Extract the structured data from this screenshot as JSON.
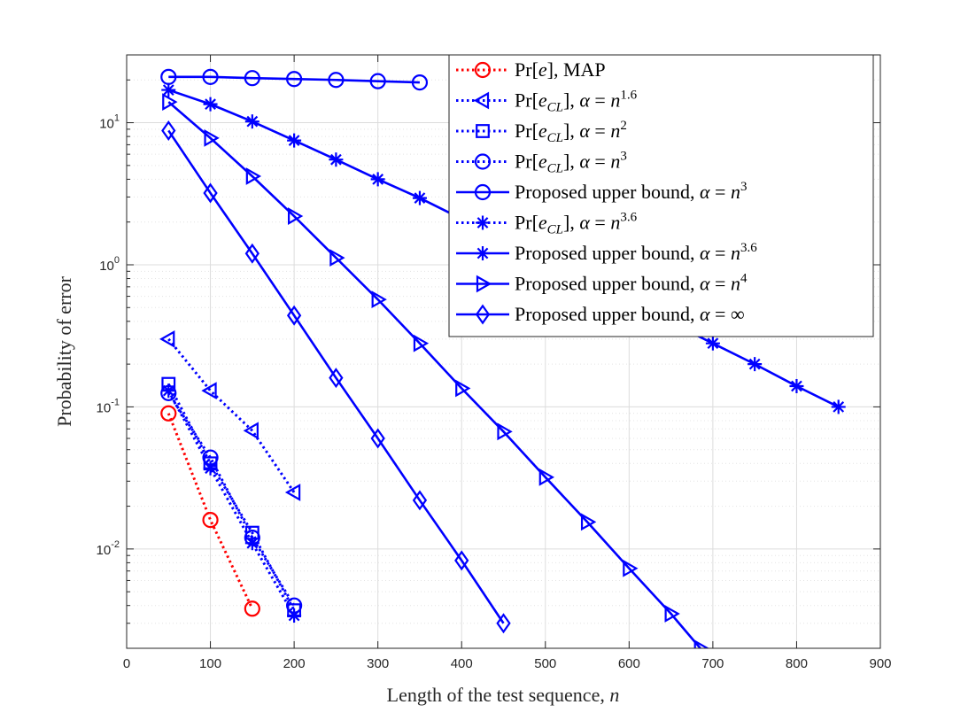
{
  "chart_data": {
    "type": "line",
    "xlabel": "Length of the test sequence, n",
    "ylabel": "Probability of error",
    "xlim": [
      0,
      900
    ],
    "ylim": [
      0.002,
      30
    ],
    "yscale": "log",
    "grid": true,
    "legend_position": "top-right",
    "x_ticks": [
      "0",
      "100",
      "200",
      "300",
      "400",
      "500",
      "600",
      "700",
      "800",
      "900"
    ],
    "y_ticks": [
      {
        "mantissa": "10",
        "exp": "-2"
      },
      {
        "mantissa": "10",
        "exp": "-1"
      },
      {
        "mantissa": "10",
        "exp": "0"
      },
      {
        "mantissa": "10",
        "exp": "1"
      }
    ],
    "series": [
      {
        "name": "Pr[e], MAP",
        "color": "#ff0000",
        "style": "dotted",
        "marker": "circle",
        "x": [
          50,
          100,
          150
        ],
        "y": [
          0.09,
          0.016,
          0.0038
        ]
      },
      {
        "name": "Pr[e_CL], α = n^1.6",
        "color": "#0000ff",
        "style": "dotted",
        "marker": "triangle-left",
        "x": [
          50,
          100,
          150,
          200
        ],
        "y": [
          0.3,
          0.13,
          0.068,
          0.025
        ]
      },
      {
        "name": "Pr[e_CL], α = n^2",
        "color": "#0000ff",
        "style": "dotted",
        "marker": "square",
        "x": [
          50,
          100,
          150,
          200
        ],
        "y": [
          0.145,
          0.04,
          0.013,
          0.0037
        ]
      },
      {
        "name": "Pr[e_CL], α = n^3",
        "color": "#0000ff",
        "style": "dotted",
        "marker": "circle",
        "x": [
          50,
          100,
          150,
          200
        ],
        "y": [
          0.125,
          0.044,
          0.012,
          0.004
        ]
      },
      {
        "name": "Proposed upper bound, α = n^3",
        "color": "#0000ff",
        "style": "solid",
        "marker": "circle",
        "x": [
          50,
          100,
          150,
          200,
          250,
          300,
          350
        ],
        "y": [
          21,
          21,
          20.6,
          20.3,
          20,
          19.6,
          19.2
        ]
      },
      {
        "name": "Pr[e_CL], α = n^3.6",
        "color": "#0000ff",
        "style": "dotted",
        "marker": "star",
        "x": [
          50,
          100,
          150,
          200
        ],
        "y": [
          0.13,
          0.037,
          0.011,
          0.0034
        ]
      },
      {
        "name": "Proposed upper bound, α = n^3.6",
        "color": "#0000ff",
        "style": "solid",
        "marker": "star",
        "x": [
          50,
          100,
          150,
          200,
          250,
          300,
          350,
          700,
          750,
          800,
          850
        ],
        "y": [
          17,
          13.5,
          10.2,
          7.5,
          5.5,
          4.0,
          2.95,
          0.28,
          0.2,
          0.14,
          0.1
        ]
      },
      {
        "name": "Proposed upper bound, α = n^4",
        "color": "#0000ff",
        "style": "solid",
        "marker": "triangle-right",
        "x": [
          50,
          100,
          150,
          200,
          250,
          300,
          350,
          400,
          450,
          500,
          550,
          600,
          650,
          685
        ],
        "y": [
          14,
          7.8,
          4.2,
          2.2,
          1.12,
          0.57,
          0.28,
          0.135,
          0.067,
          0.032,
          0.0155,
          0.0073,
          0.0035,
          0.002
        ]
      },
      {
        "name": "Proposed upper bound, α = ∞",
        "color": "#0000ff",
        "style": "solid",
        "marker": "diamond",
        "x": [
          50,
          100,
          150,
          200,
          250,
          300,
          350,
          400,
          450
        ],
        "y": [
          8.8,
          3.2,
          1.2,
          0.44,
          0.16,
          0.06,
          0.022,
          0.0083,
          0.003
        ]
      }
    ],
    "legend": [
      {
        "base": "Pr",
        "arg": "e",
        "sub": "",
        "desc": "MAP",
        "exp": ""
      },
      {
        "base": "Pr",
        "arg": "e",
        "sub": "CL",
        "desc": "",
        "exp": "1.6"
      },
      {
        "base": "Pr",
        "arg": "e",
        "sub": "CL",
        "desc": "",
        "exp": "2"
      },
      {
        "base": "Pr",
        "arg": "e",
        "sub": "CL",
        "desc": "",
        "exp": "3"
      },
      {
        "base": "Proposed upper bound",
        "arg": "",
        "sub": "",
        "desc": "",
        "exp": "3"
      },
      {
        "base": "Pr",
        "arg": "e",
        "sub": "CL",
        "desc": "",
        "exp": "3.6"
      },
      {
        "base": "Proposed upper bound",
        "arg": "",
        "sub": "",
        "desc": "",
        "exp": "3.6"
      },
      {
        "base": "Proposed upper bound",
        "arg": "",
        "sub": "",
        "desc": "",
        "exp": "4"
      },
      {
        "base": "Proposed upper bound",
        "arg": "",
        "sub": "",
        "desc": "",
        "exp": "∞"
      }
    ]
  }
}
